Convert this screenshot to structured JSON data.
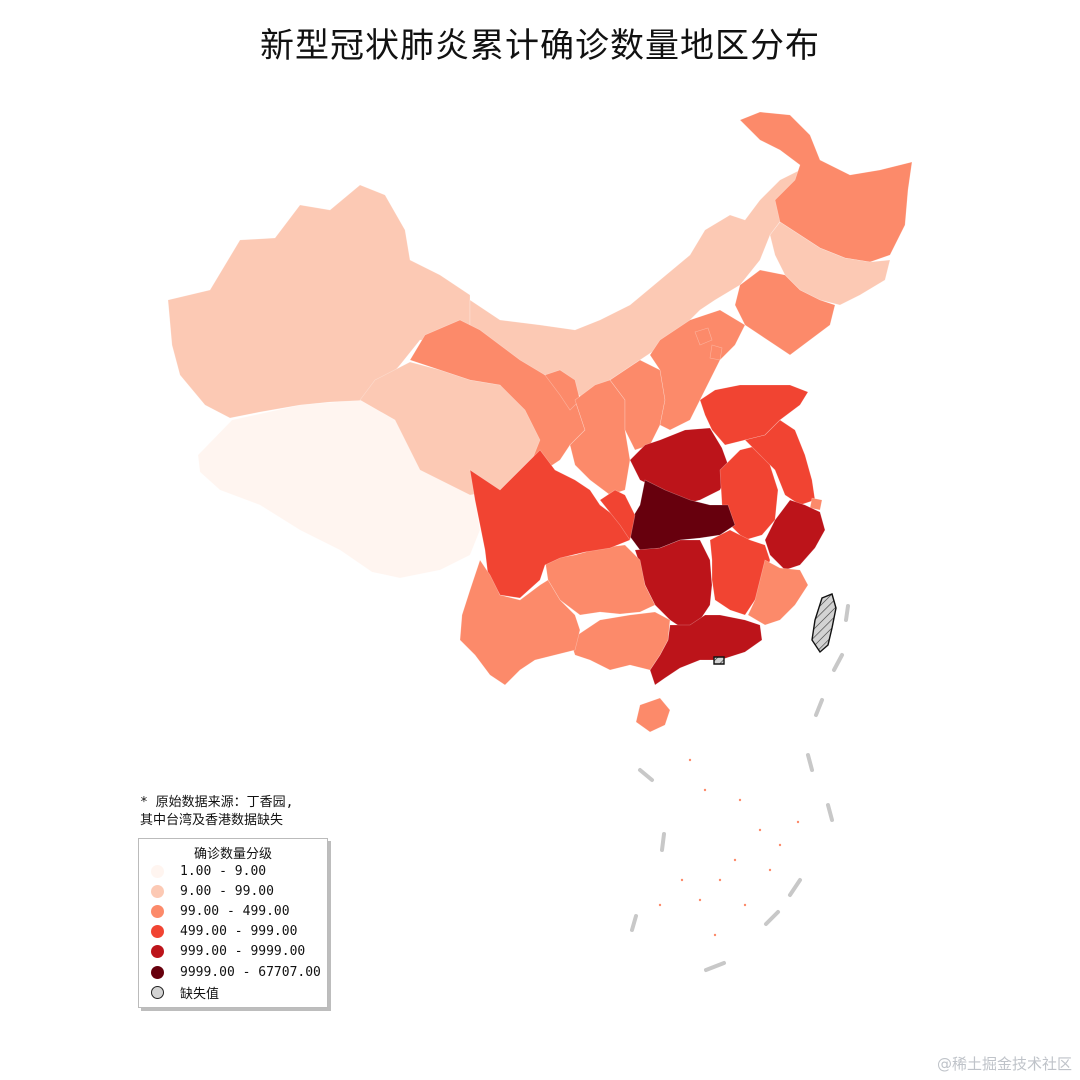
{
  "title": "新型冠状肺炎累计确诊数量地区分布",
  "note": {
    "line1": "* 原始数据来源：丁香园,",
    "line2": "其中台湾及香港数据缺失"
  },
  "legend": {
    "title": "确诊数量分级",
    "items": [
      {
        "label": "1.00 - 9.00",
        "color": "#fff5f0"
      },
      {
        "label": "9.00 - 99.00",
        "color": "#fcc9b4"
      },
      {
        "label": "99.00 - 499.00",
        "color": "#fc8a6a"
      },
      {
        "label": "499.00 - 999.00",
        "color": "#f14432"
      },
      {
        "label": "999.00 - 9999.00",
        "color": "#bc141a"
      },
      {
        "label": "9999.00 - 67707.00",
        "color": "#67000d"
      },
      {
        "label": "缺失值",
        "color": "#d3d3d3"
      }
    ]
  },
  "map_data": {
    "regions": [
      {
        "name": "Xizang",
        "class": 0
      },
      {
        "name": "Xinjiang",
        "class": 1
      },
      {
        "name": "Qinghai",
        "class": 1
      },
      {
        "name": "Inner Mongolia",
        "class": 1
      },
      {
        "name": "Heilongjiang",
        "class": 2
      },
      {
        "name": "Jilin",
        "class": 1
      },
      {
        "name": "Liaoning",
        "class": 2
      },
      {
        "name": "Gansu",
        "class": 2
      },
      {
        "name": "Ningxia",
        "class": 2
      },
      {
        "name": "Shaanxi",
        "class": 2
      },
      {
        "name": "Shanxi",
        "class": 2
      },
      {
        "name": "Hebei",
        "class": 2
      },
      {
        "name": "Beijing",
        "class": 2
      },
      {
        "name": "Tianjin",
        "class": 2
      },
      {
        "name": "Shandong",
        "class": 3
      },
      {
        "name": "Henan",
        "class": 4
      },
      {
        "name": "Anhui",
        "class": 3
      },
      {
        "name": "Jiangsu",
        "class": 3
      },
      {
        "name": "Shanghai",
        "class": 2
      },
      {
        "name": "Zhejiang",
        "class": 4
      },
      {
        "name": "Hubei",
        "class": 5
      },
      {
        "name": "Hunan",
        "class": 4
      },
      {
        "name": "Jiangxi",
        "class": 3
      },
      {
        "name": "Fujian",
        "class": 2
      },
      {
        "name": "Guangdong",
        "class": 4
      },
      {
        "name": "Guangxi",
        "class": 2
      },
      {
        "name": "Guizhou",
        "class": 2
      },
      {
        "name": "Sichuan",
        "class": 3
      },
      {
        "name": "Chongqing",
        "class": 3
      },
      {
        "name": "Yunnan",
        "class": 2
      },
      {
        "name": "Hainan",
        "class": 2
      },
      {
        "name": "Taiwan",
        "class": 6
      },
      {
        "name": "Hong Kong",
        "class": 6
      }
    ]
  },
  "watermark": "@稀土掘金技术社区"
}
